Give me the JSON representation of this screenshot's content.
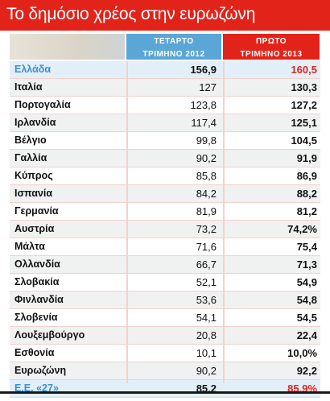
{
  "title": "Το δημόσιο χρέος στην ευρωζώνη",
  "headers": {
    "q4_line1": "ΤΕΤΑΡΤΟ",
    "q4_line2": "ΤΡΙΜΗΝΟ 2012",
    "q1_line1": "ΠΡΩΤΟ",
    "q1_line2": "ΤΡΙΜΗΝΟ 2013"
  },
  "rows": [
    {
      "name": "Ελλάδα",
      "q4_2012": "156,9",
      "q1_2013": "160,5"
    },
    {
      "name": "Ιταλία",
      "q4_2012": "127",
      "q1_2013": "130,3"
    },
    {
      "name": "Πορτογαλία",
      "q4_2012": "123,8",
      "q1_2013": "127,2"
    },
    {
      "name": "Ιρλανδία",
      "q4_2012": "117,4",
      "q1_2013": "125,1"
    },
    {
      "name": "Βέλγιο",
      "q4_2012": "99,8",
      "q1_2013": "104,5"
    },
    {
      "name": "Γαλλία",
      "q4_2012": "90,2",
      "q1_2013": "91,9"
    },
    {
      "name": "Κύπρος",
      "q4_2012": "85,8",
      "q1_2013": "86,9"
    },
    {
      "name": "Ισπανία",
      "q4_2012": "84,2",
      "q1_2013": "88,2"
    },
    {
      "name": "Γερμανία",
      "q4_2012": "81,9",
      "q1_2013": "81,2"
    },
    {
      "name": "Αυστρία",
      "q4_2012": "73,2",
      "q1_2013": "74,2%"
    },
    {
      "name": "Μάλτα",
      "q4_2012": "71,6",
      "q1_2013": "75,4"
    },
    {
      "name": "Ολλανδία",
      "q4_2012": "66,7",
      "q1_2013": "71,3"
    },
    {
      "name": "Σλοβακία",
      "q4_2012": "52,1",
      "q1_2013": "54,9"
    },
    {
      "name": "Φινλανδία",
      "q4_2012": "53,6",
      "q1_2013": "54,8"
    },
    {
      "name": "Σλοβενία",
      "q4_2012": "54,1",
      "q1_2013": "54,5"
    },
    {
      "name": "Λουξεμβούργο",
      "q4_2012": "20,8",
      "q1_2013": "22,4"
    },
    {
      "name": "Εσθονία",
      "q4_2012": "10,1",
      "q1_2013": "10,0%"
    },
    {
      "name": "Ευρωζώνη",
      "q4_2012": "90,2",
      "q1_2013": "92,2"
    },
    {
      "name": "Ε.Ε. «27»",
      "q4_2012": "85,2",
      "q1_2013": "85,9%"
    }
  ]
}
